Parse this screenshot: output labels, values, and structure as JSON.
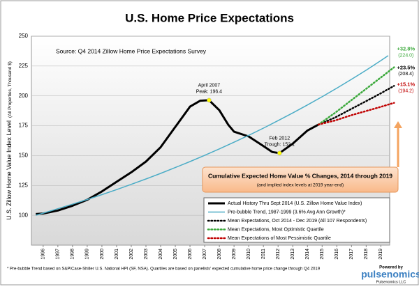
{
  "chart_data": {
    "type": "line",
    "title": "U.S. Home Price Expectations",
    "source": "Source: Q4 2014 Zillow Home Price Expectations Survey",
    "y_label": "U.S. Zillow Home Value Index Level",
    "y_label_note": "(All Properties, Thousand $)",
    "xlim": [
      1995.2,
      2019.6
    ],
    "xticks": [
      1996,
      1997,
      1998,
      1999,
      2000,
      2001,
      2002,
      2003,
      2004,
      2005,
      2006,
      2007,
      2008,
      2009,
      2010,
      2011,
      2012,
      2013,
      2014,
      2015,
      2016,
      2017,
      2018,
      2019
    ],
    "ylim": [
      75,
      250
    ],
    "yticks": [
      100,
      125,
      150,
      175,
      200,
      225,
      250
    ],
    "series": [
      {
        "name": "Actual History Thru Sept 2014 (U.S. Zillow Home Value Index)",
        "color": "#000000",
        "width": 3,
        "dotted": false,
        "x": [
          1995.5,
          1996,
          1997,
          1998,
          1999,
          2000,
          2001,
          2002,
          2003,
          2004,
          2005,
          2006,
          2006.7,
          2007.3,
          2008,
          2008.6,
          2009,
          2010,
          2011,
          2011.6,
          2012.1,
          2013,
          2014,
          2014.75
        ],
        "values": [
          101,
          101.5,
          104,
          108,
          113,
          120,
          128,
          136,
          145,
          157,
          174,
          191,
          196,
          196.4,
          188,
          176,
          170,
          166,
          158,
          153,
          152.1,
          160,
          171,
          176
        ]
      },
      {
        "name": "Pre-bubble Trend, 1987-1999 (3.6% Avg Ann Growth)*",
        "color": "#4bacc6",
        "width": 1.5,
        "dotted": false,
        "x": [
          1995.5,
          1996,
          1997,
          1998,
          1999,
          2000,
          2001,
          2002,
          2003,
          2004,
          2005,
          2006,
          2007,
          2008,
          2009,
          2010,
          2011,
          2012,
          2013,
          2014,
          2015,
          2016,
          2017,
          2018,
          2019,
          2019.5
        ],
        "values": [
          100,
          101.8,
          105.5,
          109.3,
          113.2,
          117.3,
          121.5,
          125.9,
          130.4,
          135.1,
          140.0,
          145.0,
          150.2,
          155.6,
          161.2,
          167.0,
          173.0,
          179.3,
          185.7,
          192.4,
          199.3,
          206.5,
          213.9,
          221.6,
          229.6,
          233.7
        ]
      },
      {
        "name": "Mean Expectations, Oct 2014 - Dec 2019 (All 107 Respondents)",
        "color": "#000000",
        "width": 2.5,
        "dotted": true,
        "x": [
          2014.75,
          2015.9,
          2016.9,
          2017.9,
          2018.9,
          2019.9
        ],
        "values": [
          176,
          182,
          188.5,
          195,
          201.5,
          208.4
        ],
        "end_label": "+23.5%",
        "end_value_label": "(208.4)"
      },
      {
        "name": "Mean Expectations, Most Optimistic Quartile",
        "color": "#3aa83a",
        "width": 2.5,
        "dotted": true,
        "x": [
          2014.75,
          2015.9,
          2016.9,
          2017.9,
          2018.9,
          2019.9
        ],
        "values": [
          176,
          186,
          195.5,
          205,
          214.5,
          224.0
        ],
        "end_label": "+32.8%",
        "end_value_label": "(224.0)"
      },
      {
        "name": "Mean Expectations of Most Pessimistic Quartile",
        "color": "#c00000",
        "width": 2.5,
        "dotted": true,
        "x": [
          2014.75,
          2015.9,
          2016.9,
          2017.9,
          2018.9,
          2019.9
        ],
        "values": [
          176,
          179.5,
          183.5,
          187,
          190.5,
          194.2
        ],
        "end_label": "+15.1%",
        "end_value_label": "(194.2)"
      }
    ],
    "annotations": [
      {
        "line1": "April 2007",
        "line2": "Peak: 196.4",
        "x": 2007.3,
        "y": 196.4
      },
      {
        "line1": "Feb 2012",
        "line2": "Trough: 152.1",
        "x": 2012.1,
        "y": 152.1
      }
    ],
    "box_title": "Cumulative Expected Home Value % Changes, 2014 through 2019",
    "box_note": "(and implied index levels at 2019 year-end)",
    "footnote": "* Pre-bubble Trend based on S&P/Case-Shiller U.S. National HPI (SF, NSA).  Quartiles are based on panelists' expected cumulative home price change through Q4 2019",
    "logo_prefix": "Powered by",
    "logo": "pulsenomics",
    "logo_company": "Pulsenomics LLC",
    "grid": true
  }
}
